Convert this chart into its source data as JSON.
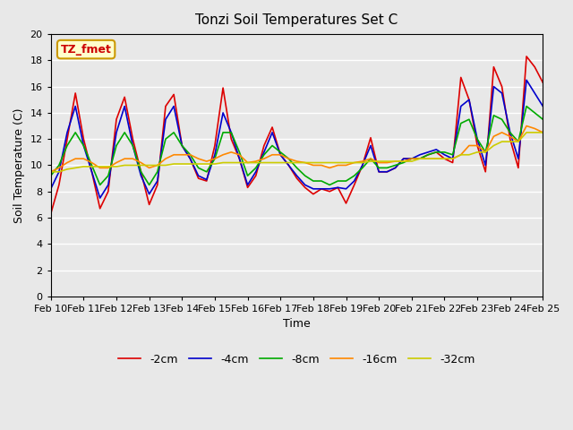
{
  "title": "Tonzi Soil Temperatures Set C",
  "xlabel": "Time",
  "ylabel": "Soil Temperature (C)",
  "ylim": [
    0,
    20
  ],
  "yticks": [
    0,
    2,
    4,
    6,
    8,
    10,
    12,
    14,
    16,
    18,
    20
  ],
  "annotation_text": "TZ_fmet",
  "annotation_color": "#cc0000",
  "annotation_bg": "#ffffcc",
  "annotation_border": "#cc9900",
  "bg_color": "#e8e8e8",
  "plot_bg": "#e8e8e8",
  "grid_color": "#ffffff",
  "series": {
    "-2cm": {
      "color": "#dd0000",
      "lw": 1.2
    },
    "-4cm": {
      "color": "#0000cc",
      "lw": 1.2
    },
    "-8cm": {
      "color": "#00aa00",
      "lw": 1.2
    },
    "-16cm": {
      "color": "#ff8800",
      "lw": 1.2
    },
    "-32cm": {
      "color": "#cccc00",
      "lw": 1.2
    }
  },
  "xtick_labels": [
    "Feb 10",
    "Feb 11",
    "Feb 12",
    "Feb 13",
    "Feb 14",
    "Feb 15",
    "Feb 16",
    "Feb 17",
    "Feb 18",
    "Feb 19",
    "Feb 20",
    "Feb 21",
    "Feb 22",
    "Feb 23",
    "Feb 24",
    "Feb 25"
  ],
  "x": [
    0,
    0.25,
    0.5,
    0.75,
    1,
    1.25,
    1.5,
    1.75,
    2,
    2.25,
    2.5,
    2.75,
    3,
    3.25,
    3.5,
    3.75,
    4,
    4.25,
    4.5,
    4.75,
    5,
    5.25,
    5.5,
    5.75,
    6,
    6.25,
    6.5,
    6.75,
    7,
    7.25,
    7.5,
    7.75,
    8,
    8.25,
    8.5,
    8.75,
    9,
    9.25,
    9.5,
    9.75,
    10,
    10.25,
    10.5,
    10.75,
    11,
    11.25,
    11.5,
    11.75,
    12,
    12.25,
    12.5,
    12.75,
    13,
    13.25,
    13.5,
    13.75,
    14,
    14.25,
    14.5,
    14.75,
    15
  ],
  "y_2cm": [
    6.3,
    8.5,
    12.0,
    15.5,
    12.0,
    9.5,
    6.7,
    8.0,
    13.5,
    15.2,
    12.0,
    9.5,
    7.0,
    8.5,
    14.5,
    15.4,
    11.5,
    10.5,
    9.0,
    8.8,
    11.5,
    15.9,
    12.0,
    10.5,
    8.3,
    9.2,
    11.5,
    12.9,
    10.8,
    10.0,
    9.0,
    8.3,
    7.8,
    8.2,
    8.0,
    8.3,
    7.1,
    8.5,
    10.0,
    12.1,
    9.5,
    9.5,
    9.8,
    10.5,
    10.5,
    10.5,
    10.8,
    11.0,
    10.5,
    10.2,
    16.7,
    15.0,
    11.5,
    9.5,
    17.5,
    16.0,
    12.0,
    9.8,
    18.3,
    17.5,
    16.3
  ],
  "y_4cm": [
    8.2,
    9.5,
    12.5,
    14.5,
    11.5,
    9.5,
    7.5,
    8.5,
    12.5,
    14.5,
    11.5,
    9.2,
    7.8,
    8.8,
    13.5,
    14.5,
    11.5,
    10.5,
    9.2,
    8.9,
    10.8,
    14.0,
    12.5,
    10.5,
    8.5,
    9.5,
    11.0,
    12.5,
    10.8,
    10.0,
    9.2,
    8.5,
    8.2,
    8.2,
    8.2,
    8.3,
    8.2,
    8.8,
    10.0,
    11.5,
    9.5,
    9.5,
    9.8,
    10.5,
    10.5,
    10.8,
    11.0,
    11.2,
    10.8,
    10.5,
    14.5,
    15.0,
    12.0,
    10.0,
    16.0,
    15.5,
    12.5,
    10.5,
    16.5,
    15.5,
    14.5
  ],
  "y_8cm": [
    9.2,
    10.0,
    11.5,
    12.5,
    11.5,
    10.0,
    8.5,
    9.2,
    11.5,
    12.5,
    11.5,
    9.5,
    8.5,
    9.5,
    12.0,
    12.5,
    11.5,
    10.8,
    9.8,
    9.5,
    10.5,
    12.5,
    12.5,
    11.0,
    9.2,
    9.8,
    10.8,
    11.5,
    11.0,
    10.5,
    9.8,
    9.2,
    8.8,
    8.8,
    8.5,
    8.8,
    8.8,
    9.2,
    9.8,
    10.5,
    9.8,
    9.8,
    10.0,
    10.2,
    10.5,
    10.5,
    10.8,
    11.0,
    11.0,
    10.8,
    13.2,
    13.5,
    12.0,
    11.0,
    13.8,
    13.5,
    12.5,
    11.8,
    14.5,
    14.0,
    13.5
  ],
  "y_16cm": [
    9.5,
    9.8,
    10.2,
    10.5,
    10.5,
    10.2,
    9.8,
    9.8,
    10.2,
    10.5,
    10.5,
    10.2,
    9.8,
    10.0,
    10.5,
    10.8,
    10.8,
    10.8,
    10.5,
    10.3,
    10.5,
    10.8,
    11.0,
    10.8,
    10.2,
    10.3,
    10.5,
    10.8,
    10.8,
    10.5,
    10.3,
    10.2,
    10.0,
    10.0,
    9.8,
    10.0,
    10.0,
    10.2,
    10.3,
    10.5,
    10.2,
    10.2,
    10.3,
    10.3,
    10.5,
    10.5,
    10.5,
    10.5,
    10.5,
    10.5,
    10.8,
    11.5,
    11.5,
    11.0,
    12.2,
    12.5,
    12.2,
    11.8,
    13.0,
    12.8,
    12.5
  ],
  "y_32cm": [
    9.5,
    9.5,
    9.7,
    9.8,
    9.9,
    9.9,
    9.9,
    9.9,
    9.9,
    10.0,
    10.0,
    10.0,
    10.0,
    10.0,
    10.0,
    10.1,
    10.1,
    10.1,
    10.1,
    10.1,
    10.1,
    10.2,
    10.2,
    10.2,
    10.2,
    10.2,
    10.2,
    10.2,
    10.2,
    10.2,
    10.2,
    10.2,
    10.2,
    10.2,
    10.2,
    10.2,
    10.2,
    10.2,
    10.2,
    10.3,
    10.3,
    10.3,
    10.3,
    10.3,
    10.3,
    10.5,
    10.5,
    10.5,
    10.5,
    10.5,
    10.8,
    10.8,
    11.0,
    11.0,
    11.5,
    11.8,
    11.8,
    11.8,
    12.5,
    12.5,
    12.5
  ]
}
